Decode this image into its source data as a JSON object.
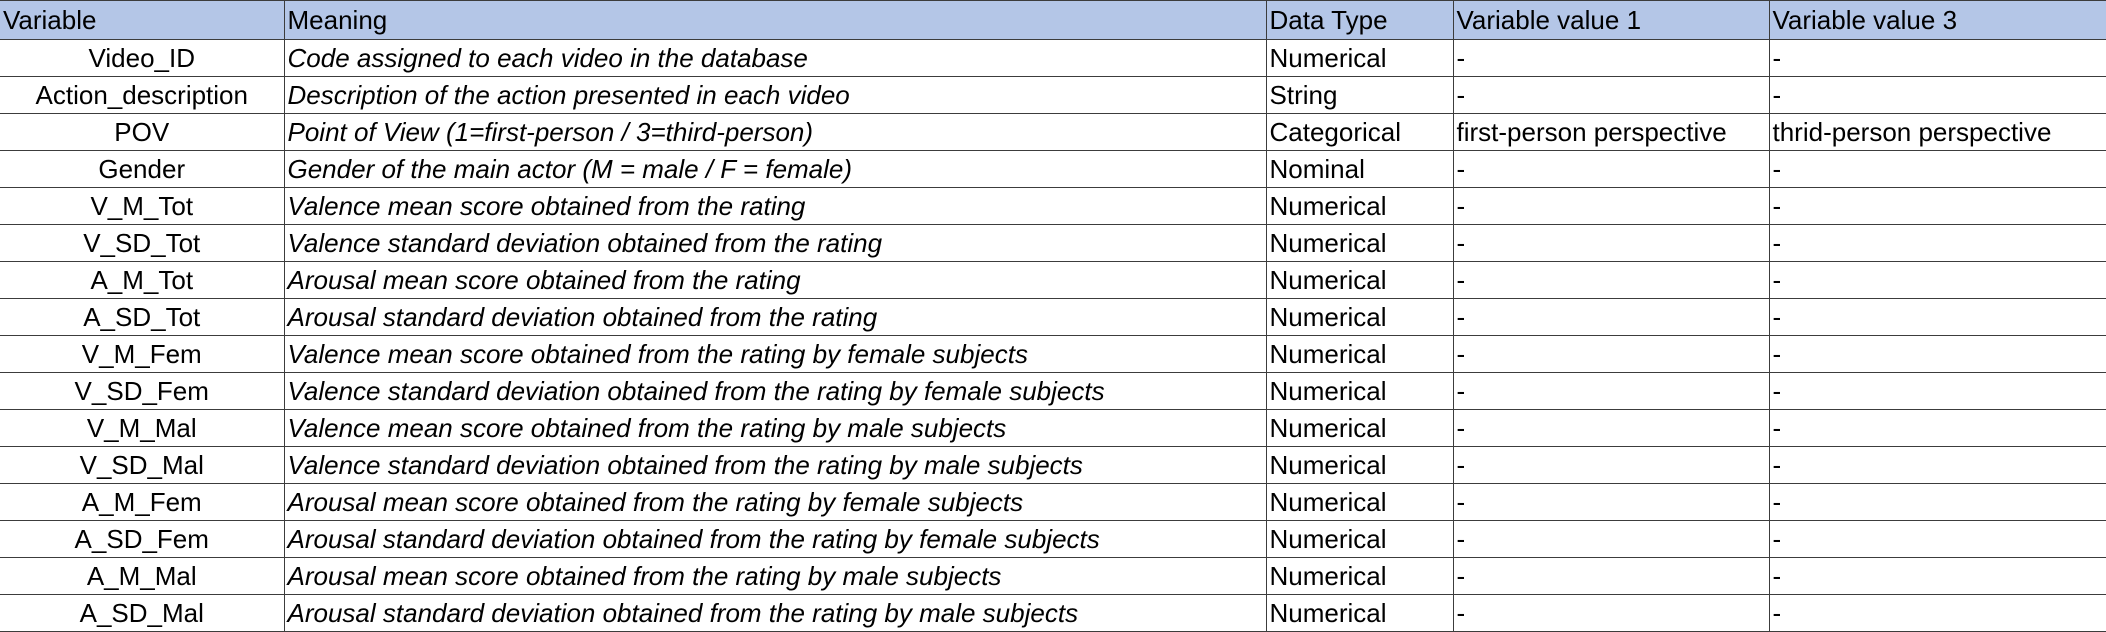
{
  "headers": [
    "Variable",
    "Meaning",
    "Data Type",
    "Variable value 1",
    "Variable value 3"
  ],
  "rows": [
    [
      "Video_ID",
      "Code assigned to each video in the database",
      "Numerical",
      "-",
      "-"
    ],
    [
      "Action_description",
      "Description of the action presented in each video",
      "String",
      "-",
      "-"
    ],
    [
      "POV",
      "Point of View  (1=first-person / 3=third-person)",
      "Categorical",
      "first-person perspective",
      "thrid-person perspective"
    ],
    [
      "Gender",
      "Gender of the main actor (M = male / F = female)",
      "Nominal",
      "-",
      "-"
    ],
    [
      "V_M_Tot",
      "Valence mean score obtained from the rating",
      "Numerical",
      "-",
      "-"
    ],
    [
      "V_SD_Tot",
      "Valence standard deviation obtained from the rating",
      "Numerical",
      "-",
      "-"
    ],
    [
      "A_M_Tot",
      "Arousal mean score obtained from the rating",
      "Numerical",
      "-",
      "-"
    ],
    [
      "A_SD_Tot",
      "Arousal standard deviation obtained from the rating",
      "Numerical",
      "-",
      "-"
    ],
    [
      "V_M_Fem",
      "Valence mean score obtained from the rating by female subjects",
      "Numerical",
      "-",
      "-"
    ],
    [
      "V_SD_Fem",
      "Valence standard deviation obtained from the rating by female subjects",
      "Numerical",
      "-",
      "-"
    ],
    [
      "V_M_Mal",
      "Valence mean score obtained from the rating by male subjects",
      "Numerical",
      "-",
      "-"
    ],
    [
      "V_SD_Mal",
      "Valence standard deviation obtained from the rating by male subjects",
      "Numerical",
      "-",
      "-"
    ],
    [
      "A_M_Fem",
      "Arousal mean score obtained from the rating by female subjects",
      "Numerical",
      "-",
      "-"
    ],
    [
      "A_SD_Fem",
      "Arousal standard deviation obtained from the rating by female subjects",
      "Numerical",
      "-",
      "-"
    ],
    [
      "A_M_Mal",
      "Arousal mean score obtained from the rating by male subjects",
      "Numerical",
      "-",
      "-"
    ],
    [
      "A_SD_Mal",
      "Arousal standard deviation obtained from the rating by male subjects",
      "Numerical",
      "-",
      "-"
    ]
  ],
  "colors": {
    "header_fill": "#b4c6e7",
    "grid_line": "#3c3c3c"
  }
}
